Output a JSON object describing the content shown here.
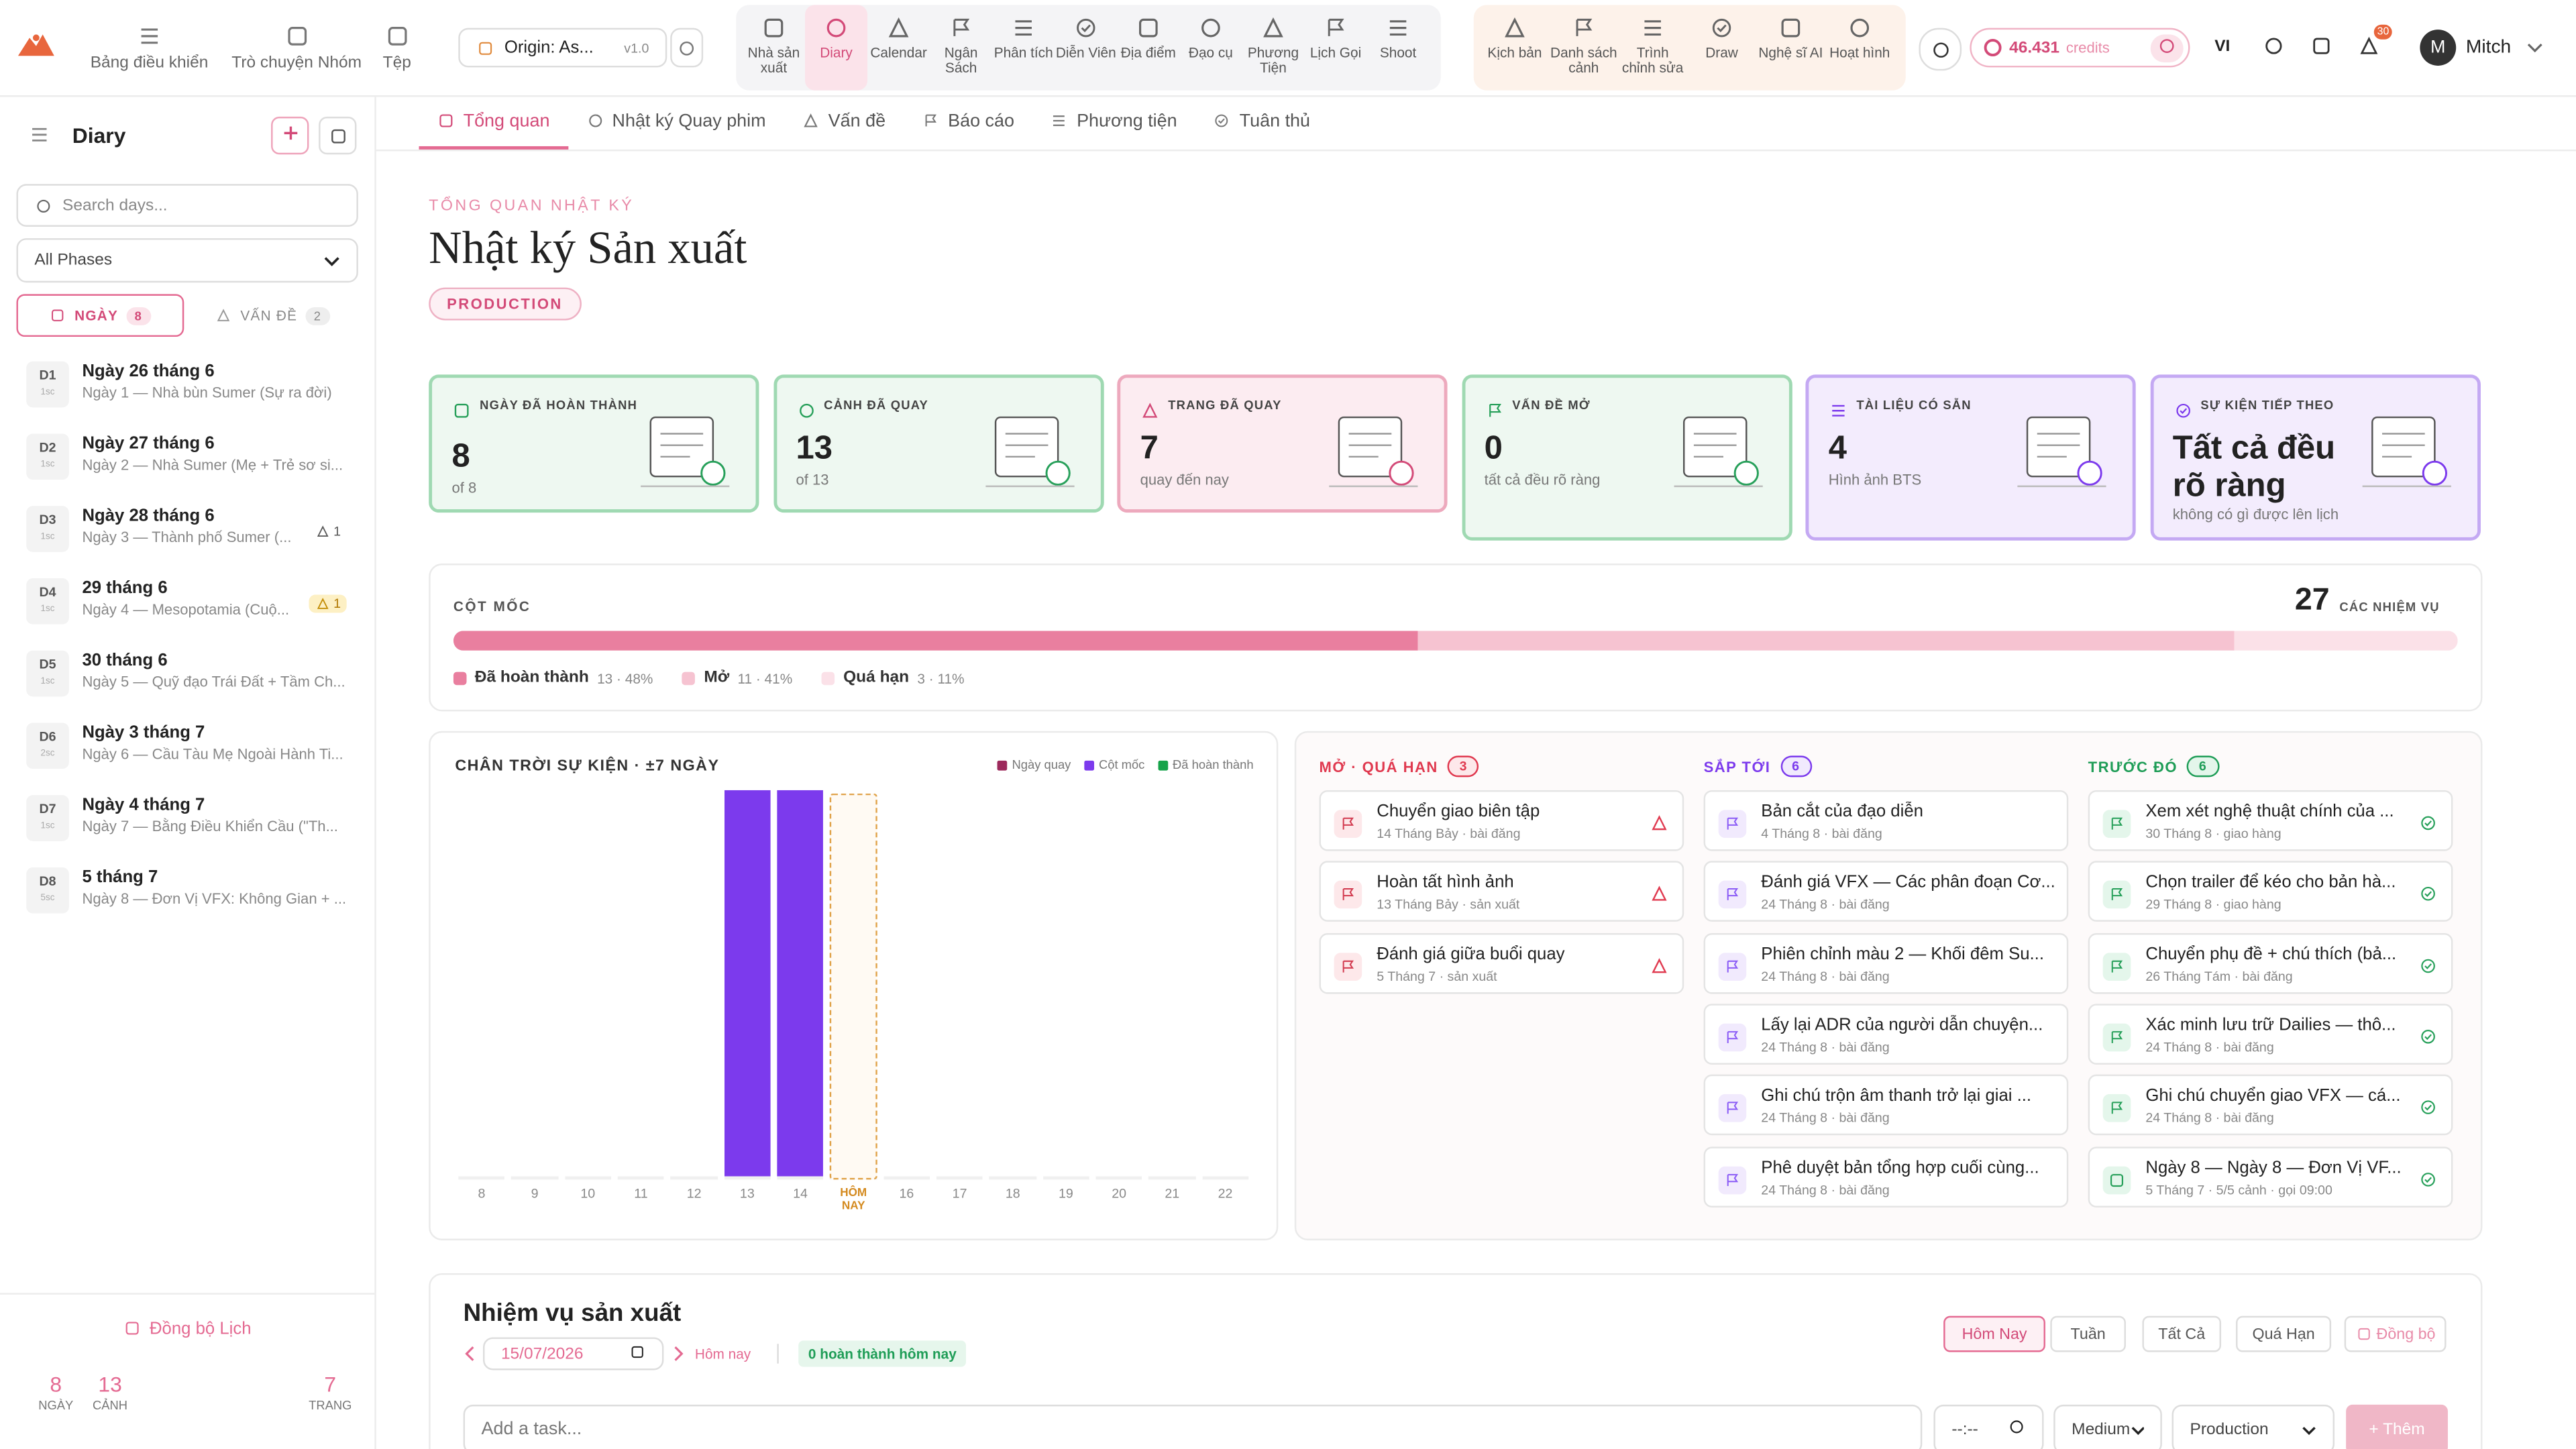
{
  "topbar": {
    "nav": [
      "Bảng điều khiển",
      "Trò chuyện Nhóm",
      "Tệp"
    ],
    "project": {
      "name": "Origin: As...",
      "version": "v1.0"
    },
    "tools": [
      "Nhà sản xuất",
      "Diary",
      "Calendar",
      "Ngân Sách",
      "Phân tích",
      "Diễn Viên",
      "Địa điểm",
      "Đạo cụ",
      "Phương Tiện",
      "Lịch Gọi",
      "Shoot"
    ],
    "tools2": [
      "Kịch bản",
      "Danh sách cảnh",
      "Trình chỉnh sửa",
      "Draw",
      "Nghệ sĩ AI",
      "Hoạt hình"
    ],
    "credits": "46.431",
    "credits_unit": "credits",
    "lang": "VI",
    "notifications": "30",
    "user_initial": "M",
    "user": "Mitch"
  },
  "sidebar": {
    "title": "Diary",
    "search_placeholder": "Search days...",
    "phase": "All Phases",
    "tabs": [
      {
        "label": "NGÀY",
        "count": "8"
      },
      {
        "label": "VẤN ĐỀ",
        "count": "2"
      }
    ],
    "days": [
      {
        "code": "D1",
        "sub": "1sc",
        "title": "Ngày 26 tháng 6",
        "desc": "Ngày 1 — Nhà bùn Sumer (Sự ra đời)"
      },
      {
        "code": "D2",
        "sub": "1sc",
        "title": "Ngày 27 tháng 6",
        "desc": "Ngày 2 — Nhà Sumer (Mẹ + Trẻ sơ si..."
      },
      {
        "code": "D3",
        "sub": "1sc",
        "title": "Ngày 28 tháng 6",
        "desc": "Ngày 3 — Thành phố Sumer (...",
        "issues": "1"
      },
      {
        "code": "D4",
        "sub": "1sc",
        "title": "29 tháng 6",
        "desc": "Ngày 4 — Mesopotamia (Cuộ...",
        "issues": "1"
      },
      {
        "code": "D5",
        "sub": "1sc",
        "title": "30 tháng 6",
        "desc": "Ngày 5 — Quỹ đạo Trái Đất + Tầm Ch..."
      },
      {
        "code": "D6",
        "sub": "2sc",
        "title": "Ngày 3 tháng 7",
        "desc": "Ngày 6 — Cầu Tàu Mẹ Ngoài Hành Ti..."
      },
      {
        "code": "D7",
        "sub": "1sc",
        "title": "Ngày 4 tháng 7",
        "desc": "Ngày 7 — Bằng Điều Khiển Cầu (\"Th..."
      },
      {
        "code": "D8",
        "sub": "5sc",
        "title": "5 tháng 7",
        "desc": "Ngày 8 — Đơn Vị VFX: Không Gian + ..."
      }
    ],
    "sync": "Đồng bộ Lịch",
    "stats": [
      {
        "value": "8",
        "label": "NGÀY"
      },
      {
        "value": "13",
        "label": "CẢNH"
      },
      {
        "value": "7",
        "label": "TRANG"
      }
    ]
  },
  "tabs": [
    "Tổng quan",
    "Nhật ký Quay phim",
    "Vấn đề",
    "Báo cáo",
    "Phương tiện",
    "Tuân thủ"
  ],
  "header": {
    "eyebrow": "TỔNG QUAN NHẬT KÝ",
    "title": "Nhật ký Sản xuất",
    "badge": "PRODUCTION"
  },
  "cards": [
    {
      "label": "NGÀY ĐÃ HOÀN THÀNH",
      "value": "8",
      "sub": "of 8",
      "theme": "green"
    },
    {
      "label": "CẢNH ĐÃ QUAY",
      "value": "13",
      "sub": "of 13",
      "theme": "green"
    },
    {
      "label": "TRANG ĐÃ QUAY",
      "value": "7",
      "sub": "quay đến nay",
      "theme": "pink"
    },
    {
      "label": "VẤN ĐỀ MỞ",
      "value": "0",
      "sub": "tất cả đều rõ ràng",
      "theme": "green"
    },
    {
      "label": "TÀI LIỆU CÓ SẴN",
      "value": "4",
      "sub": "Hình ảnh BTS",
      "theme": "purple"
    },
    {
      "label": "SỰ KIỆN TIẾP THEO",
      "value": "Tất cả đều rõ ràng",
      "sub": "không có gì được lên lịch",
      "theme": "purple"
    }
  ],
  "milestones": {
    "label": "CỘT MỐC",
    "total": "27",
    "total_label": "CÁC NHIỆM VỤ",
    "segments": [
      {
        "name": "Đã hoàn thành",
        "value": 13,
        "label": "13 · 48%",
        "color": "#e97f9f"
      },
      {
        "name": "Mở",
        "value": 11,
        "label": "11 · 41%",
        "color": "#f6c3d1"
      },
      {
        "name": "Quá hạn",
        "value": 3,
        "label": "3 · 11%",
        "color": "#fbe1e8"
      }
    ]
  },
  "chart_data": {
    "type": "bar",
    "title": "CHÂN TRỜI SỰ KIỆN · ±7 NGÀY",
    "categories": [
      "8",
      "9",
      "10",
      "11",
      "12",
      "13",
      "14",
      "HÔM NAY",
      "16",
      "17",
      "18",
      "19",
      "20",
      "21",
      "22"
    ],
    "series": [
      {
        "name": "Ngày quay",
        "color": "#9d2a5c",
        "values": [
          0,
          0,
          0,
          0,
          0,
          0,
          0,
          0,
          0,
          0,
          0,
          0,
          0,
          0,
          0
        ]
      },
      {
        "name": "Cột mốc",
        "color": "#7c3aed",
        "values": [
          0,
          0,
          0,
          0,
          0,
          1,
          1,
          0,
          0,
          0,
          0,
          0,
          0,
          0,
          0
        ]
      },
      {
        "name": "Đã hoàn thành",
        "color": "#16a34a",
        "values": [
          0,
          0,
          0,
          0,
          0,
          0,
          0,
          0,
          0,
          0,
          0,
          0,
          0,
          0,
          0
        ]
      }
    ]
  },
  "task_columns": [
    {
      "title": "MỞ · QUÁ HẠN",
      "count": "3",
      "theme": "red",
      "items": [
        {
          "title": "Chuyển giao biên tập",
          "meta": "14 Tháng Bảy · bài đăng"
        },
        {
          "title": "Hoàn tất hình ảnh",
          "meta": "13 Tháng Bảy · sản xuất"
        },
        {
          "title": "Đánh giá giữa buổi quay",
          "meta": "5 Tháng 7 · sản xuất"
        }
      ]
    },
    {
      "title": "SẮP TỚI",
      "count": "6",
      "theme": "purple",
      "items": [
        {
          "title": "Bản cắt của đạo diễn",
          "meta": "4 Tháng 8 · bài đăng"
        },
        {
          "title": "Đánh giá VFX — Các phân đoạn Cơ...",
          "meta": "24 Tháng 8 · bài đăng"
        },
        {
          "title": "Phiên chỉnh màu 2 — Khối đêm Su...",
          "meta": "24 Tháng 8 · bài đăng"
        },
        {
          "title": "Lấy lại ADR của người dẫn chuyện...",
          "meta": "24 Tháng 8 · bài đăng"
        },
        {
          "title": "Ghi chú trộn âm thanh trở lại giai ...",
          "meta": "24 Tháng 8 · bài đăng"
        },
        {
          "title": "Phê duyệt bản tổng hợp cuối cùng...",
          "meta": "24 Tháng 8 · bài đăng"
        }
      ]
    },
    {
      "title": "TRƯỚC ĐÓ",
      "count": "6",
      "theme": "green",
      "items": [
        {
          "title": "Xem xét nghệ thuật chính của ...",
          "meta": "30 Tháng 8 · giao hàng"
        },
        {
          "title": "Chọn trailer để kéo cho bản hà...",
          "meta": "29 Tháng 8 · giao hàng"
        },
        {
          "title": "Chuyển phụ đề + chú thích (bả...",
          "meta": "26 Tháng Tám · bài đăng"
        },
        {
          "title": "Xác minh lưu trữ Dailies — thô...",
          "meta": "24 Tháng 8 · bài đăng"
        },
        {
          "title": "Ghi chú chuyển giao VFX — cá...",
          "meta": "24 Tháng 8 · bài đăng"
        },
        {
          "title": "Ngày 8 — Ngày 8 — Đơn Vị VF...",
          "meta": "5 Tháng 7 · 5/5 cảnh · gọi 09:00"
        }
      ]
    }
  ],
  "production_tasks": {
    "title": "Nhiệm vụ sản xuất",
    "date": "15/07/2026",
    "today": "Hôm nay",
    "done": "0 hoàn thành hôm nay",
    "filters": [
      "Hôm Nay",
      "Tuần",
      "Tất Cả",
      "Quá Hạn"
    ],
    "sync": "Đồng bộ",
    "placeholder": "Add a task...",
    "time": "--:--",
    "priority": "Medium",
    "phase": "Production",
    "add": "+ Thêm"
  }
}
